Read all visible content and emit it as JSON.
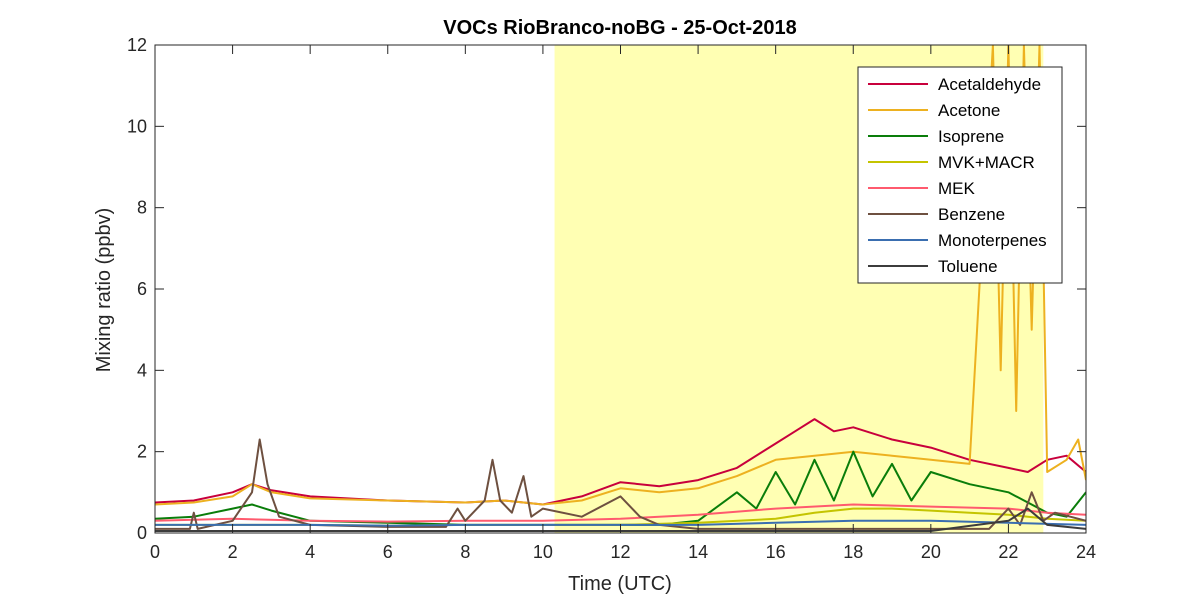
{
  "chart_data": {
    "type": "line",
    "title": "VOCs RioBranco-noBG - 25-Oct-2018",
    "xlabel": "Time (UTC)",
    "ylabel": "Mixing ratio (ppbv)",
    "xlim": [
      0,
      24
    ],
    "ylim": [
      0,
      12
    ],
    "xticks": [
      0,
      2,
      4,
      6,
      8,
      10,
      12,
      14,
      16,
      18,
      20,
      22,
      24
    ],
    "yticks": [
      0,
      2,
      4,
      6,
      8,
      10,
      12
    ],
    "grid": false,
    "legend_position": "top-right",
    "highlight_region": {
      "x_start": 10.3,
      "x_end": 22.9,
      "color": "#ffffb3"
    },
    "series": [
      {
        "name": "Acetaldehyde",
        "color": "#c8003c",
        "x": [
          0,
          1,
          2,
          2.5,
          3,
          4,
          6,
          8,
          9,
          10,
          11,
          12,
          13,
          14,
          15,
          16,
          16.5,
          17,
          17.5,
          18,
          19,
          20,
          21,
          22,
          22.5,
          23,
          23.5,
          24
        ],
        "y": [
          0.75,
          0.8,
          1.0,
          1.2,
          1.05,
          0.9,
          0.8,
          0.75,
          0.8,
          0.7,
          0.9,
          1.25,
          1.15,
          1.3,
          1.6,
          2.2,
          2.5,
          2.8,
          2.5,
          2.6,
          2.3,
          2.1,
          1.8,
          1.6,
          1.5,
          1.8,
          1.9,
          1.5
        ]
      },
      {
        "name": "Acetone",
        "color": "#edb120",
        "x": [
          0,
          1,
          2,
          2.5,
          3,
          4,
          6,
          8,
          9,
          10,
          11,
          12,
          13,
          14,
          15,
          16,
          17,
          18,
          19,
          20,
          21,
          21.6,
          21.8,
          22,
          22.2,
          22.4,
          22.6,
          22.8,
          23,
          23.5,
          23.8,
          24
        ],
        "y": [
          0.7,
          0.75,
          0.9,
          1.2,
          1.0,
          0.85,
          0.8,
          0.75,
          0.8,
          0.7,
          0.8,
          1.1,
          1.0,
          1.1,
          1.4,
          1.8,
          1.9,
          2.0,
          1.9,
          1.8,
          1.7,
          12,
          4.0,
          12,
          3.0,
          12,
          5.0,
          12,
          1.5,
          1.8,
          2.3,
          1.3
        ]
      },
      {
        "name": "Isoprene",
        "color": "#0a7d0a",
        "x": [
          0,
          1,
          2,
          2.5,
          3,
          4,
          6,
          8,
          10,
          12,
          13,
          14,
          15,
          15.5,
          16,
          16.5,
          17,
          17.5,
          18,
          18.5,
          19,
          19.5,
          20,
          21,
          22,
          23,
          23.5,
          24
        ],
        "y": [
          0.35,
          0.4,
          0.6,
          0.7,
          0.55,
          0.3,
          0.25,
          0.2,
          0.2,
          0.2,
          0.2,
          0.3,
          1.0,
          0.6,
          1.5,
          0.7,
          1.8,
          0.8,
          2.0,
          0.9,
          1.7,
          0.8,
          1.5,
          1.2,
          1.0,
          0.5,
          0.4,
          1.0
        ]
      },
      {
        "name": "MVK+MACR",
        "color": "#c4c400",
        "x": [
          0,
          2,
          4,
          6,
          8,
          10,
          12,
          14,
          16,
          17,
          18,
          19,
          20,
          21,
          22,
          23,
          24
        ],
        "y": [
          0.2,
          0.2,
          0.2,
          0.18,
          0.2,
          0.2,
          0.2,
          0.25,
          0.35,
          0.5,
          0.6,
          0.6,
          0.55,
          0.5,
          0.45,
          0.35,
          0.3
        ]
      },
      {
        "name": "MEK",
        "color": "#ff5a6e",
        "x": [
          0,
          2,
          4,
          6,
          8,
          10,
          12,
          14,
          16,
          18,
          20,
          22,
          23,
          24
        ],
        "y": [
          0.3,
          0.35,
          0.3,
          0.28,
          0.3,
          0.3,
          0.35,
          0.45,
          0.6,
          0.7,
          0.65,
          0.6,
          0.5,
          0.45
        ]
      },
      {
        "name": "Benzene",
        "color": "#6e5040",
        "x": [
          0,
          0.9,
          1.0,
          1.1,
          2,
          2.5,
          2.7,
          2.9,
          3.2,
          4,
          6,
          7.5,
          7.8,
          8.0,
          8.5,
          8.7,
          8.9,
          9.2,
          9.5,
          9.7,
          10,
          11,
          12,
          12.5,
          13,
          14,
          15,
          16,
          18,
          20,
          21.5,
          22,
          22.3,
          22.6,
          22.9,
          23.2,
          24
        ],
        "y": [
          0.1,
          0.1,
          0.5,
          0.1,
          0.3,
          1.0,
          2.3,
          1.2,
          0.4,
          0.2,
          0.15,
          0.15,
          0.6,
          0.3,
          0.8,
          1.8,
          0.8,
          0.5,
          1.4,
          0.4,
          0.6,
          0.4,
          0.9,
          0.4,
          0.2,
          0.1,
          0.1,
          0.1,
          0.1,
          0.1,
          0.1,
          0.6,
          0.2,
          1.0,
          0.3,
          0.5,
          0.3
        ]
      },
      {
        "name": "Monoterpenes",
        "color": "#3a6eb0",
        "x": [
          0,
          2,
          4,
          6,
          8,
          10,
          12,
          14,
          16,
          18,
          20,
          22,
          24
        ],
        "y": [
          0.2,
          0.2,
          0.2,
          0.18,
          0.2,
          0.2,
          0.2,
          0.2,
          0.25,
          0.3,
          0.3,
          0.25,
          0.2
        ]
      },
      {
        "name": "Toluene",
        "color": "#3c3c3c",
        "x": [
          0,
          2,
          4,
          6,
          8,
          10,
          12,
          14,
          16,
          18,
          20,
          22,
          22.5,
          23,
          24
        ],
        "y": [
          0.05,
          0.05,
          0.05,
          0.05,
          0.05,
          0.05,
          0.05,
          0.05,
          0.05,
          0.05,
          0.05,
          0.3,
          0.6,
          0.2,
          0.1
        ]
      }
    ]
  }
}
